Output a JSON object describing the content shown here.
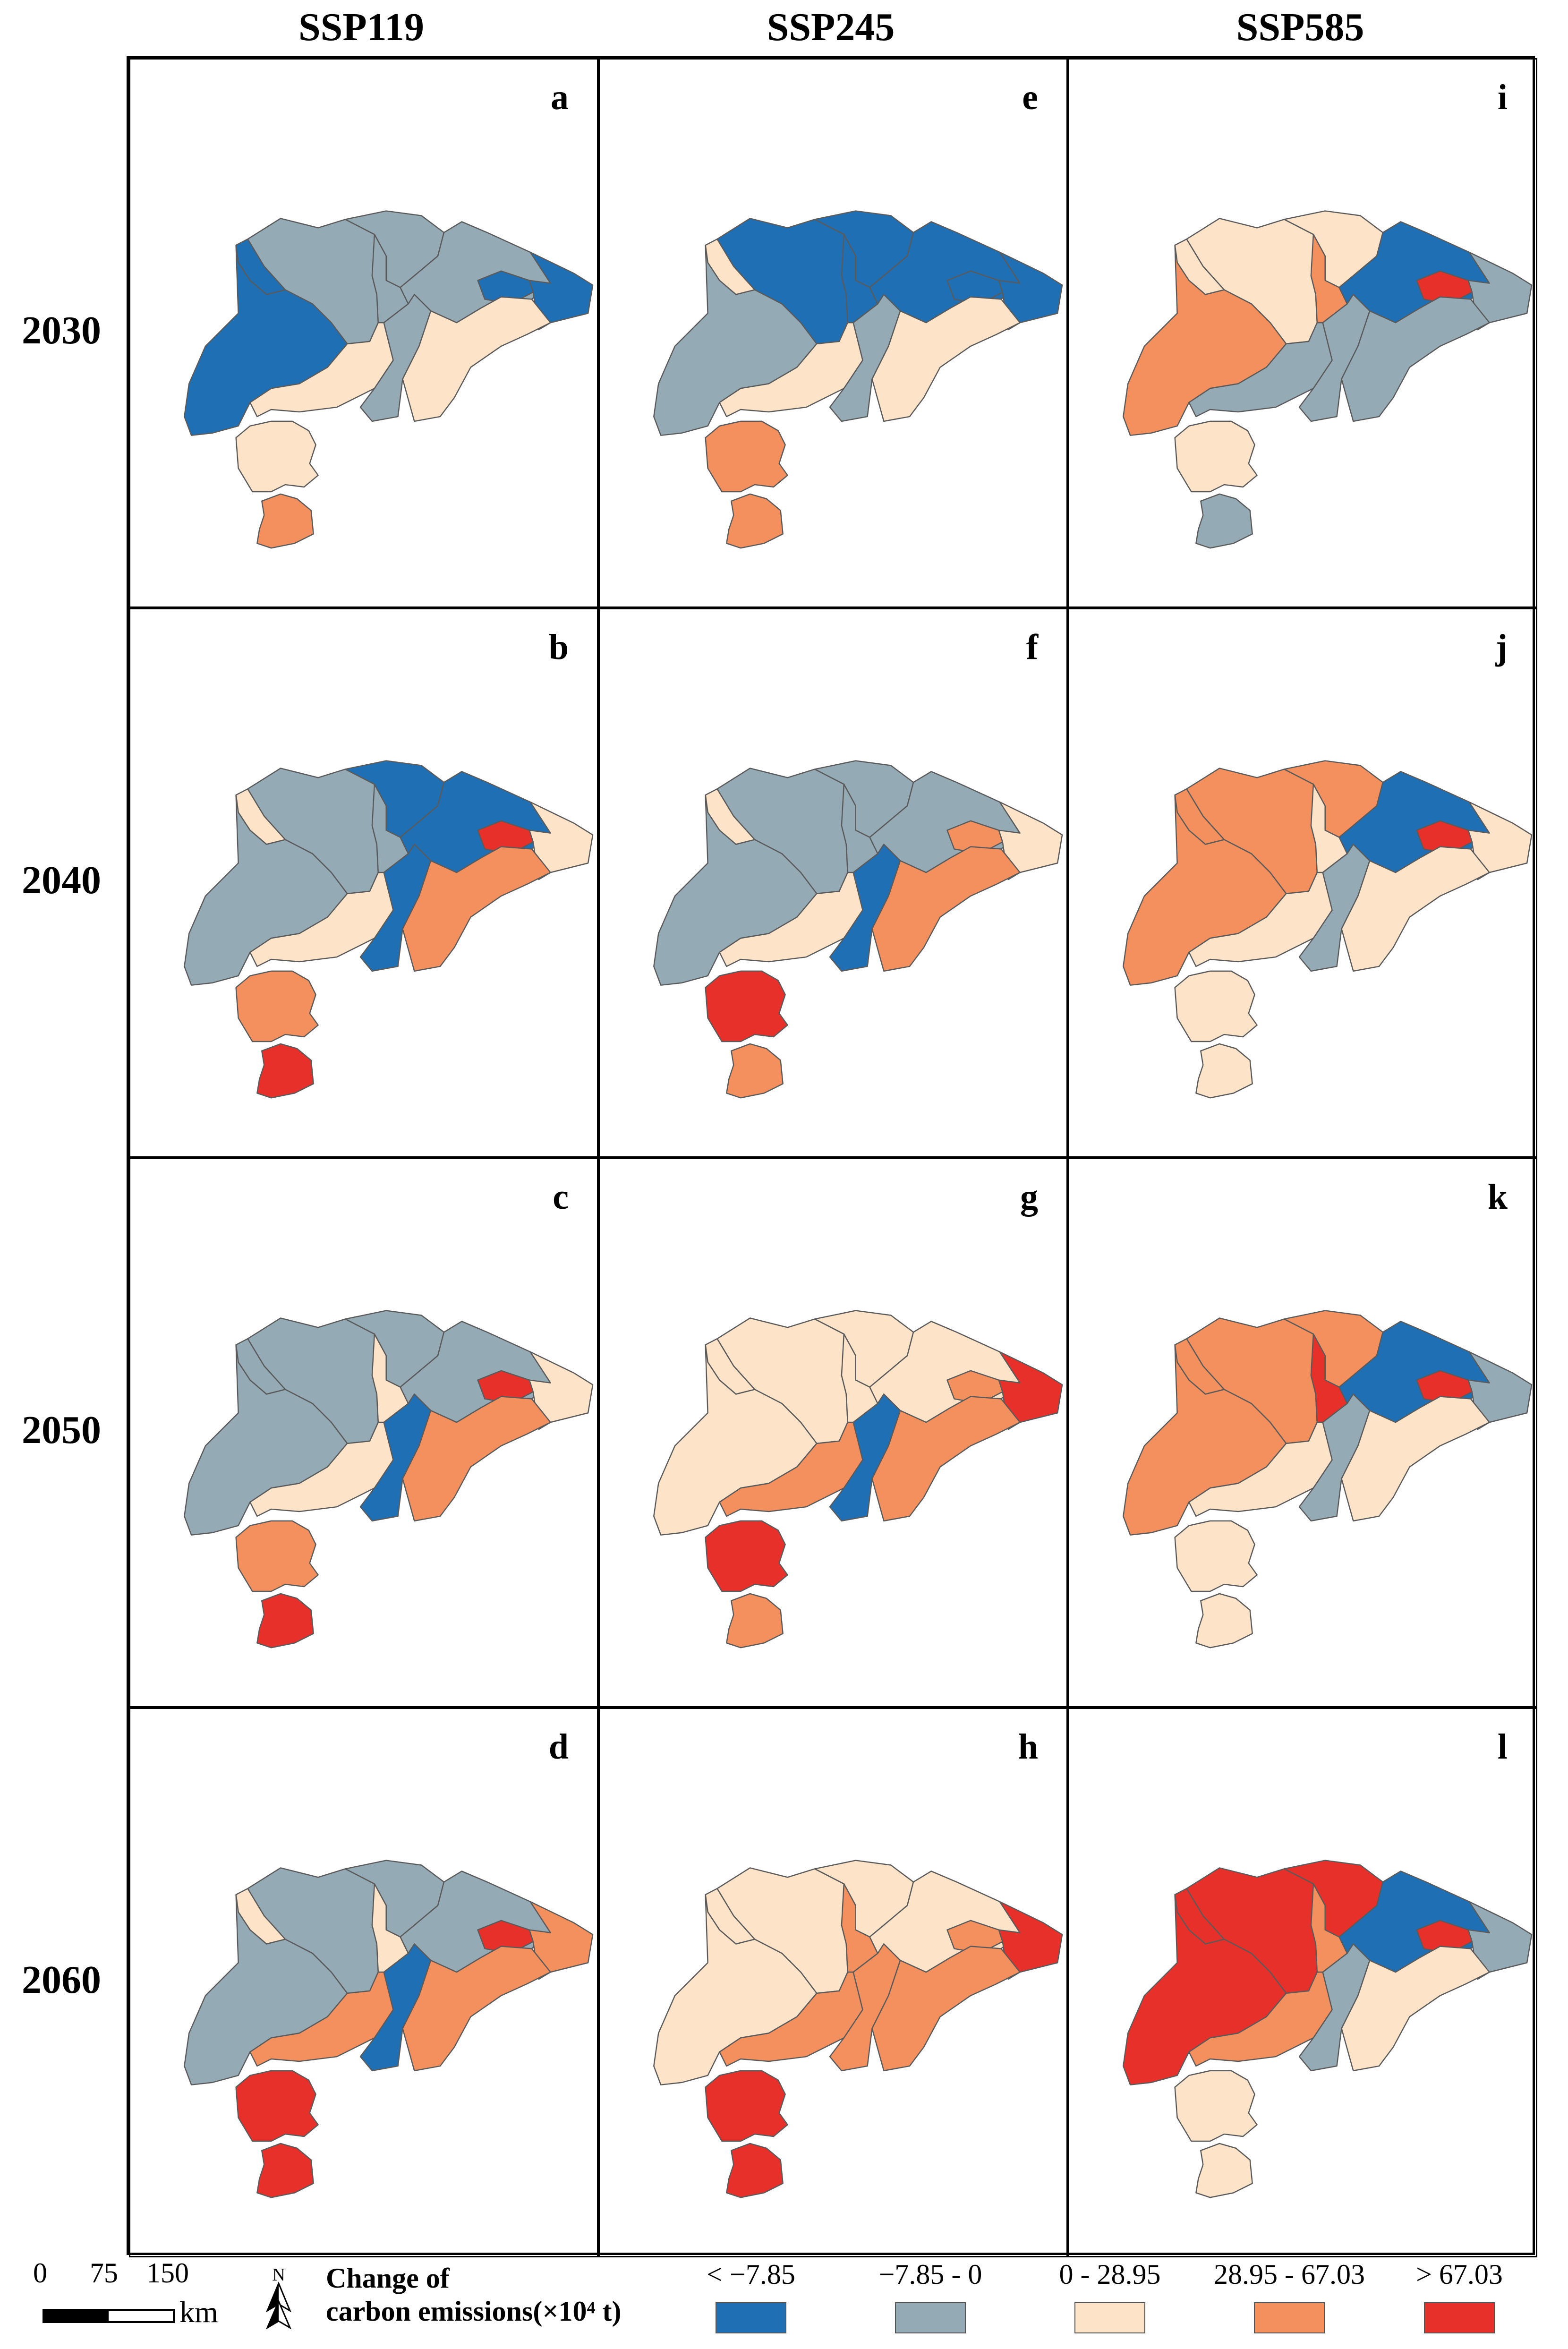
{
  "columns": [
    "SSP119",
    "SSP245",
    "SSP585"
  ],
  "rows": [
    "2030",
    "2040",
    "2050",
    "2060"
  ],
  "class_colors": [
    "#1f6fb4",
    "#94aab5",
    "#fde4c9",
    "#f3905d",
    "#e8302a"
  ],
  "boundary_color": "#5a5a5a",
  "panels": [
    {
      "letter": "a",
      "scenario": "SSP119",
      "year": "2030",
      "classes": [
        1,
        1,
        1,
        0,
        1,
        0,
        2,
        0,
        0,
        1,
        2,
        2,
        3
      ]
    },
    {
      "letter": "e",
      "scenario": "SSP245",
      "year": "2030",
      "classes": [
        0,
        0,
        0,
        2,
        0,
        1,
        2,
        0,
        0,
        1,
        3,
        2,
        3
      ]
    },
    {
      "letter": "i",
      "scenario": "SSP585",
      "year": "2030",
      "classes": [
        2,
        2,
        3,
        2,
        0,
        3,
        1,
        4,
        1,
        1,
        2,
        1,
        1
      ]
    },
    {
      "letter": "b",
      "scenario": "SSP119",
      "year": "2040",
      "classes": [
        1,
        0,
        1,
        2,
        0,
        1,
        2,
        4,
        2,
        0,
        3,
        3,
        4
      ]
    },
    {
      "letter": "f",
      "scenario": "SSP245",
      "year": "2040",
      "classes": [
        1,
        1,
        1,
        2,
        1,
        1,
        2,
        3,
        2,
        0,
        4,
        3,
        3
      ]
    },
    {
      "letter": "j",
      "scenario": "SSP585",
      "year": "2040",
      "classes": [
        3,
        3,
        2,
        3,
        0,
        3,
        2,
        4,
        2,
        1,
        2,
        2,
        2
      ]
    },
    {
      "letter": "c",
      "scenario": "SSP119",
      "year": "2050",
      "classes": [
        1,
        1,
        2,
        1,
        1,
        1,
        2,
        4,
        2,
        0,
        3,
        3,
        4
      ]
    },
    {
      "letter": "g",
      "scenario": "SSP245",
      "year": "2050",
      "classes": [
        2,
        2,
        2,
        2,
        2,
        2,
        3,
        3,
        4,
        0,
        4,
        3,
        3
      ]
    },
    {
      "letter": "k",
      "scenario": "SSP585",
      "year": "2050",
      "classes": [
        3,
        3,
        4,
        3,
        0,
        3,
        2,
        4,
        1,
        1,
        2,
        2,
        2
      ]
    },
    {
      "letter": "d",
      "scenario": "SSP119",
      "year": "2060",
      "classes": [
        1,
        1,
        2,
        2,
        1,
        1,
        3,
        4,
        3,
        0,
        4,
        3,
        4
      ]
    },
    {
      "letter": "h",
      "scenario": "SSP245",
      "year": "2060",
      "classes": [
        2,
        2,
        3,
        2,
        2,
        2,
        3,
        3,
        4,
        3,
        4,
        3,
        4
      ]
    },
    {
      "letter": "l",
      "scenario": "SSP585",
      "year": "2060",
      "classes": [
        4,
        4,
        3,
        4,
        0,
        4,
        3,
        4,
        1,
        1,
        2,
        2,
        2
      ]
    }
  ],
  "legend": {
    "title_line1": "Change of",
    "title_line2": "carbon emissions(×10⁴ t)",
    "classes": [
      {
        "label": "< −7.85",
        "color": "#1f6fb4"
      },
      {
        "label": "−7.85 - 0",
        "color": "#94aab5"
      },
      {
        "label": "0 - 28.95",
        "color": "#fde4c9"
      },
      {
        "label": "28.95 - 67.03",
        "color": "#f3905d"
      },
      {
        "label": "> 67.03",
        "color": "#e8302a"
      }
    ]
  },
  "scale_bar": {
    "ticks": [
      "0",
      "75",
      "150"
    ],
    "unit": "km"
  },
  "north_arrow": {
    "label": "N",
    "icon": "north-arrow-icon"
  }
}
